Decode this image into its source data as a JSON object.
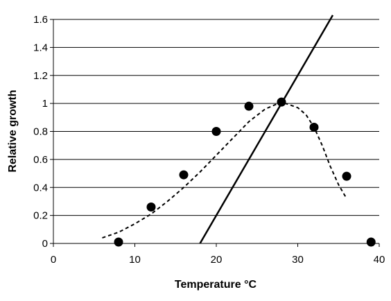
{
  "chart_data": {
    "type": "scatter",
    "title": "",
    "xlabel": "Temperature °C",
    "ylabel": "Relative growth",
    "xlim": [
      0,
      40
    ],
    "ylim": [
      0,
      1.6
    ],
    "x_ticks": [
      0,
      10,
      20,
      30,
      40
    ],
    "y_ticks": [
      0,
      0.2,
      0.4,
      0.6,
      0.8,
      1,
      1.2,
      1.4,
      1.6
    ],
    "x_tick_labels": [
      "0",
      "10",
      "20",
      "30",
      "40"
    ],
    "y_tick_labels": [
      "0",
      "0.2",
      "0.4",
      "0.6",
      "0.8",
      "1",
      "1.2",
      "1.4",
      "1.6"
    ],
    "grid": "horizontal",
    "legend": "none",
    "series": [
      {
        "kind": "points",
        "marker": "filled-circle",
        "color": "#000000",
        "x": [
          8,
          12,
          16,
          20,
          24,
          28,
          32,
          36,
          39
        ],
        "y": [
          0.01,
          0.26,
          0.49,
          0.8,
          0.98,
          1.01,
          0.83,
          0.48,
          0.01
        ]
      },
      {
        "kind": "line",
        "style": "dashed",
        "color": "#000000",
        "x": [
          6,
          8,
          10,
          12,
          14,
          16,
          18,
          20,
          22,
          24,
          26,
          28,
          30,
          31,
          32,
          33,
          34,
          35,
          36
        ],
        "y": [
          0.04,
          0.08,
          0.14,
          0.21,
          0.3,
          0.4,
          0.51,
          0.63,
          0.75,
          0.87,
          0.96,
          1.01,
          0.97,
          0.92,
          0.83,
          0.7,
          0.55,
          0.42,
          0.32
        ]
      },
      {
        "kind": "line",
        "style": "solid",
        "color": "#000000",
        "x": [
          18,
          34.3
        ],
        "y": [
          0,
          1.63
        ]
      }
    ]
  }
}
